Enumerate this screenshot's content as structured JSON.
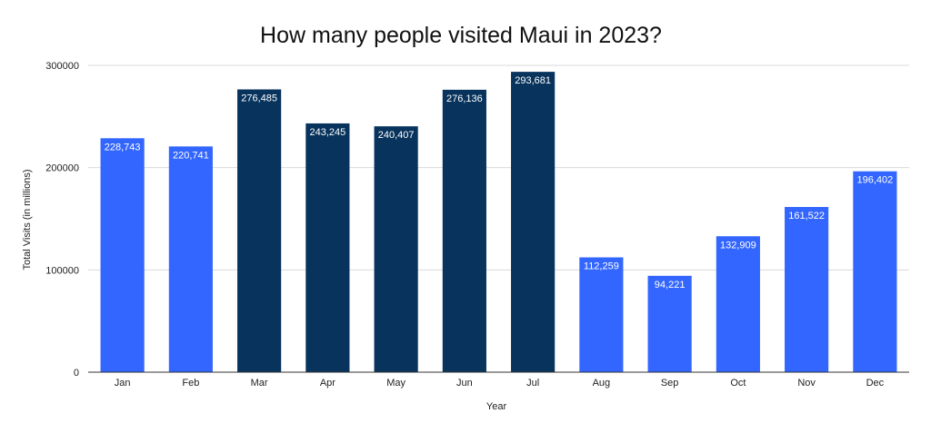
{
  "chart_data": {
    "type": "bar",
    "title": "How many people visited Maui in 2023?",
    "xlabel": "Year",
    "ylabel": "Total Visits (in millions)",
    "categories": [
      "Jan",
      "Feb",
      "Mar",
      "Apr",
      "May",
      "Jun",
      "Jul",
      "Aug",
      "Sep",
      "Oct",
      "Nov",
      "Dec"
    ],
    "values": [
      228743,
      220741,
      276485,
      243245,
      240407,
      276136,
      293681,
      112259,
      94221,
      132909,
      161522,
      196402
    ],
    "value_labels": [
      "228,743",
      "220,741",
      "276,485",
      "243,245",
      "240,407",
      "276,136",
      "293,681",
      "112,259",
      "94,221",
      "132,909",
      "161,522",
      "196,402"
    ],
    "bar_colors": [
      "#3366ff",
      "#3366ff",
      "#07335c",
      "#07335c",
      "#07335c",
      "#07335c",
      "#07335c",
      "#3366ff",
      "#3366ff",
      "#3366ff",
      "#3366ff",
      "#3366ff"
    ],
    "ylim": [
      0,
      300000
    ],
    "yticks": [
      0,
      100000,
      200000,
      300000
    ],
    "ytick_labels": [
      "0",
      "100000",
      "200000",
      "300000"
    ],
    "grid": true,
    "legend": "none"
  }
}
